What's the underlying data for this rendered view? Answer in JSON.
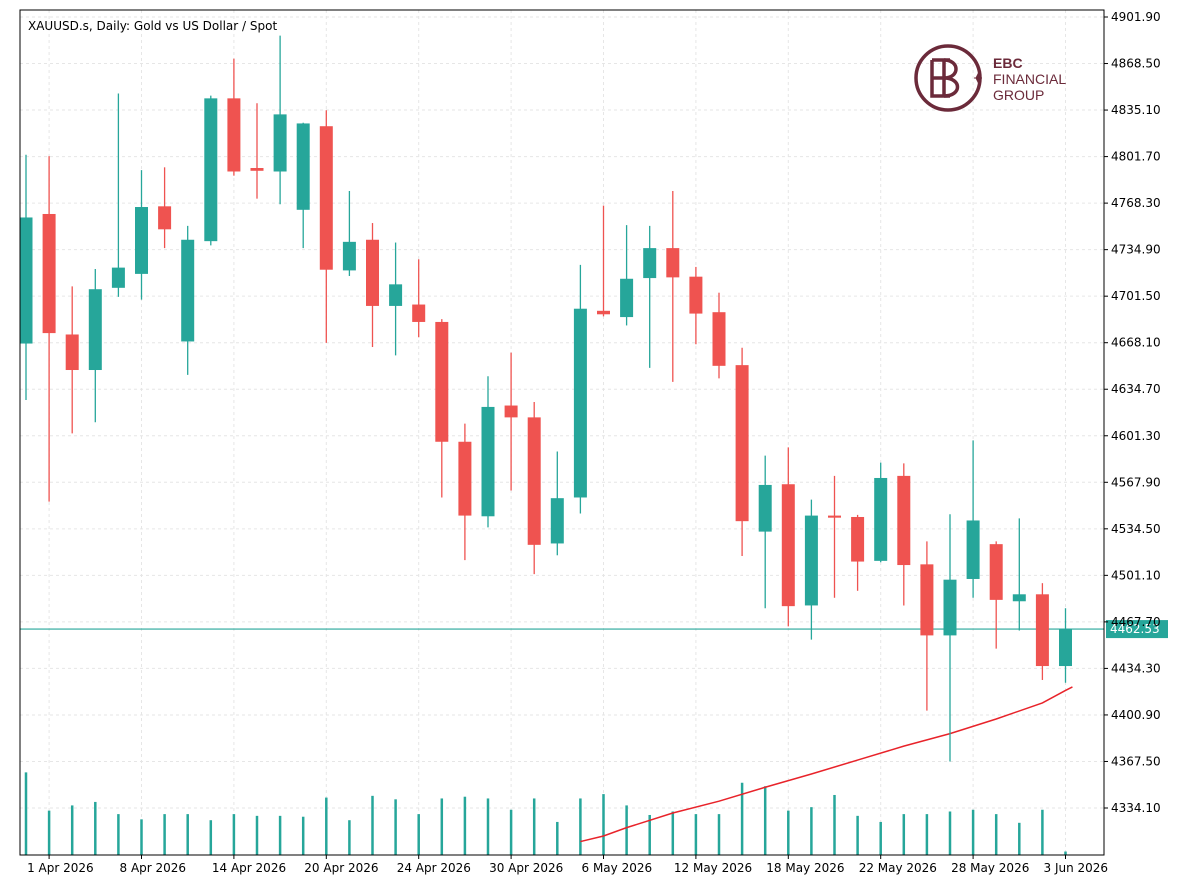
{
  "chart_data": {
    "type": "candlestick",
    "symbol": "XAUUSD.s",
    "timeframe": "Daily",
    "title": "XAUUSD.s, Daily:  Gold vs US Dollar / Spot",
    "ylim": [
      4310,
      4905
    ],
    "y_ticks": [
      "4901.90",
      "4868.50",
      "4835.10",
      "4801.70",
      "4768.30",
      "4734.90",
      "4701.50",
      "4668.10",
      "4634.70",
      "4601.30",
      "4567.90",
      "4534.50",
      "4501.10",
      "4467.70",
      "4434.30",
      "4400.90",
      "4367.50",
      "4334.10"
    ],
    "x_tick_labels": [
      {
        "index": 1,
        "label": "1 Apr 2026"
      },
      {
        "index": 5,
        "label": "8 Apr 2026"
      },
      {
        "index": 9,
        "label": "14 Apr 2026"
      },
      {
        "index": 13,
        "label": "20 Apr 2026"
      },
      {
        "index": 17,
        "label": "24 Apr 2026"
      },
      {
        "index": 21,
        "label": "30 Apr 2026"
      },
      {
        "index": 25,
        "label": "6 May 2026"
      },
      {
        "index": 29,
        "label": "12 May 2026"
      },
      {
        "index": 33,
        "label": "18 May 2026"
      },
      {
        "index": 37,
        "label": "22 May 2026"
      },
      {
        "index": 41,
        "label": "28 May 2026"
      },
      {
        "index": 45,
        "label": "3 Jun 2026"
      }
    ],
    "candles": [
      {
        "o": 4667.5,
        "h": 4803.0,
        "l": 4627.0,
        "c": 4758.0
      },
      {
        "o": 4760.5,
        "h": 4802.0,
        "l": 4554.0,
        "c": 4675.0
      },
      {
        "o": 4674.0,
        "h": 4708.5,
        "l": 4603.0,
        "c": 4648.5
      },
      {
        "o": 4648.5,
        "h": 4721.0,
        "l": 4611.0,
        "c": 4706.5
      },
      {
        "o": 4707.5,
        "h": 4847.0,
        "l": 4701.0,
        "c": 4722.0
      },
      {
        "o": 4717.5,
        "h": 4792.0,
        "l": 4699.0,
        "c": 4765.5
      },
      {
        "o": 4766.0,
        "h": 4794.0,
        "l": 4736.0,
        "c": 4749.5
      },
      {
        "o": 4669.0,
        "h": 4752.0,
        "l": 4645.0,
        "c": 4742.0
      },
      {
        "o": 4741.0,
        "h": 4845.5,
        "l": 4738.0,
        "c": 4843.5
      },
      {
        "o": 4843.5,
        "h": 4872.0,
        "l": 4788.0,
        "c": 4791.0
      },
      {
        "o": 4793.5,
        "h": 4840.0,
        "l": 4771.5,
        "c": 4791.5
      },
      {
        "o": 4791.0,
        "h": 4888.5,
        "l": 4767.5,
        "c": 4832.0
      },
      {
        "o": 4763.5,
        "h": 4826.0,
        "l": 4736.0,
        "c": 4825.5
      },
      {
        "o": 4823.5,
        "h": 4835.0,
        "l": 4668.0,
        "c": 4720.5
      },
      {
        "o": 4720.0,
        "h": 4777.0,
        "l": 4716.0,
        "c": 4740.5
      },
      {
        "o": 4742.0,
        "h": 4754.0,
        "l": 4665.0,
        "c": 4694.5
      },
      {
        "o": 4694.5,
        "h": 4740.0,
        "l": 4659.0,
        "c": 4710.0
      },
      {
        "o": 4695.5,
        "h": 4728.0,
        "l": 4672.0,
        "c": 4683.0
      },
      {
        "o": 4683.0,
        "h": 4685.0,
        "l": 4557.0,
        "c": 4597.0
      },
      {
        "o": 4597.0,
        "h": 4610.0,
        "l": 4512.0,
        "c": 4544.0
      },
      {
        "o": 4543.5,
        "h": 4644.0,
        "l": 4535.5,
        "c": 4622.0
      },
      {
        "o": 4623.0,
        "h": 4661.0,
        "l": 4562.0,
        "c": 4614.5
      },
      {
        "o": 4614.5,
        "h": 4625.5,
        "l": 4502.0,
        "c": 4523.0
      },
      {
        "o": 4524.0,
        "h": 4590.0,
        "l": 4515.5,
        "c": 4556.5
      },
      {
        "o": 4557.0,
        "h": 4724.0,
        "l": 4545.5,
        "c": 4692.5
      },
      {
        "o": 4691.0,
        "h": 4766.5,
        "l": 4687.0,
        "c": 4688.5
      },
      {
        "o": 4686.5,
        "h": 4752.5,
        "l": 4680.5,
        "c": 4714.0
      },
      {
        "o": 4714.5,
        "h": 4752.0,
        "l": 4650.0,
        "c": 4736.0
      },
      {
        "o": 4736.0,
        "h": 4777.0,
        "l": 4640.0,
        "c": 4715.0
      },
      {
        "o": 4715.5,
        "h": 4722.5,
        "l": 4667.0,
        "c": 4689.0
      },
      {
        "o": 4690.0,
        "h": 4704.0,
        "l": 4642.5,
        "c": 4651.5
      },
      {
        "o": 4652.0,
        "h": 4664.5,
        "l": 4515.0,
        "c": 4540.0
      },
      {
        "o": 4532.5,
        "h": 4587.0,
        "l": 4477.5,
        "c": 4566.0
      },
      {
        "o": 4566.5,
        "h": 4593.0,
        "l": 4464.5,
        "c": 4479.0
      },
      {
        "o": 4479.5,
        "h": 4555.5,
        "l": 4455.0,
        "c": 4544.0
      },
      {
        "o": 4544.0,
        "h": 4572.5,
        "l": 4485.0,
        "c": 4542.5
      },
      {
        "o": 4543.0,
        "h": 4544.5,
        "l": 4490.0,
        "c": 4511.0
      },
      {
        "o": 4511.5,
        "h": 4582.0,
        "l": 4510.5,
        "c": 4571.0
      },
      {
        "o": 4572.5,
        "h": 4581.5,
        "l": 4479.5,
        "c": 4508.5
      },
      {
        "o": 4509.0,
        "h": 4525.5,
        "l": 4404.0,
        "c": 4458.0
      },
      {
        "o": 4458.0,
        "h": 4545.0,
        "l": 4367.5,
        "c": 4498.0
      },
      {
        "o": 4498.5,
        "h": 4598.0,
        "l": 4485.0,
        "c": 4540.5
      },
      {
        "o": 4523.5,
        "h": 4525.5,
        "l": 4448.5,
        "c": 4483.5
      },
      {
        "o": 4482.5,
        "h": 4542.0,
        "l": 4461.5,
        "c": 4487.5
      },
      {
        "o": 4487.5,
        "h": 4495.5,
        "l": 4426.0,
        "c": 4436.0
      },
      {
        "o": 4436.0,
        "h": 4477.5,
        "l": 4424.0,
        "c": 4462.5
      }
    ],
    "volumes": [
      0.95,
      0.51,
      0.57,
      0.61,
      0.47,
      0.41,
      0.47,
      0.47,
      0.4,
      0.47,
      0.45,
      0.45,
      0.44,
      0.66,
      0.4,
      0.68,
      0.64,
      0.47,
      0.65,
      0.67,
      0.65,
      0.52,
      0.65,
      0.38,
      0.65,
      0.7,
      0.57,
      0.46,
      0.5,
      0.47,
      0.47,
      0.83,
      0.79,
      0.51,
      0.55,
      0.69,
      0.45,
      0.38,
      0.47,
      0.47,
      0.5,
      0.52,
      0.47,
      0.37,
      0.52,
      0.04
    ],
    "moving_average": {
      "color": "#e8232a",
      "points": [
        [
          24.0,
          4310
        ],
        [
          25,
          4314
        ],
        [
          26,
          4320
        ],
        [
          28,
          4330.5
        ],
        [
          30,
          4339
        ],
        [
          32,
          4349
        ],
        [
          34,
          4358.5
        ],
        [
          36,
          4368.5
        ],
        [
          38,
          4378.5
        ],
        [
          40,
          4387.5
        ],
        [
          42,
          4398
        ],
        [
          44,
          4409.5
        ],
        [
          45,
          4418.5
        ],
        [
          45.3,
          4421
        ]
      ]
    },
    "current_price": {
      "value": 4462.53,
      "label": "4462.53"
    },
    "colors": {
      "bull": "#26a69a",
      "bear": "#ef5350",
      "grid": "#e6e6e6",
      "price_line": "#26a69a",
      "volume": "#26a69a",
      "axis": "#000000"
    }
  },
  "logo": {
    "line1": "EBC",
    "line2": "FINANCIAL",
    "line3": "GROUP",
    "color": "#6b2a3a"
  }
}
